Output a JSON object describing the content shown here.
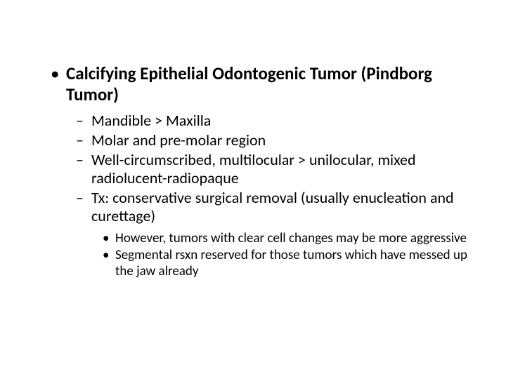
{
  "slide": {
    "background_color": "#ffffff",
    "text_color": "#000000",
    "font_family": "Calibri",
    "title": "Calcifying Epithelial Odontogenic Tumor (Pindborg Tumor)",
    "title_fontsize": 25,
    "title_fontweight": 700,
    "level2_fontsize": 22,
    "level3_fontsize": 19,
    "bullets": {
      "lvl2": [
        "Mandible > Maxilla",
        "Molar and pre-molar region",
        "Well-circumscribed, multilocular > unilocular, mixed radiolucent-radiopaque",
        "Tx: conservative surgical removal (usually enucleation and curettage)"
      ],
      "lvl3": [
        "However, tumors with clear cell changes may be more aggressive",
        "Segmental rsxn reserved for those tumors which have messed up the jaw already"
      ]
    }
  }
}
